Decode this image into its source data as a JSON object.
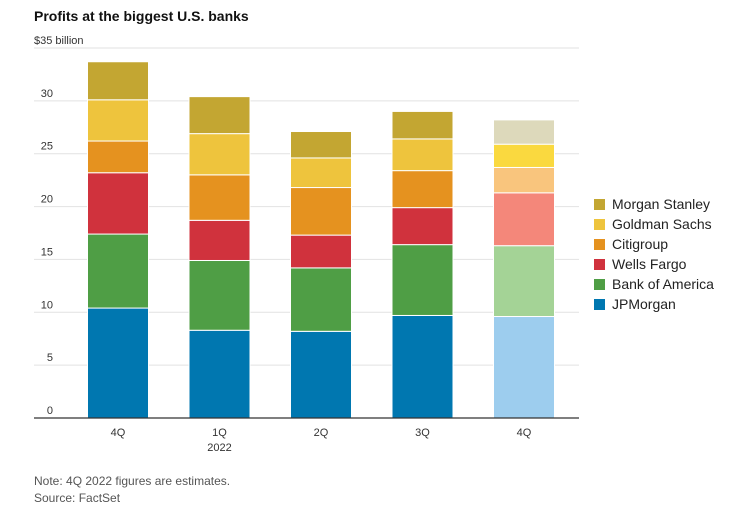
{
  "chart_data": {
    "type": "bar",
    "stacked": true,
    "title": "Profits at the biggest U.S. banks",
    "y_unit_label": "$35 billion",
    "ylim": [
      0,
      35
    ],
    "yticks": [
      "0",
      "5",
      "10",
      "15",
      "20",
      "25",
      "30"
    ],
    "categories": [
      "4Q",
      "1Q",
      "2Q",
      "3Q",
      "4Q"
    ],
    "category_sublabels": [
      "",
      "2022",
      "",
      "",
      ""
    ],
    "series": [
      {
        "name": "JPMorgan",
        "color": "#0077b0",
        "values": [
          10.4,
          8.3,
          8.2,
          9.7,
          9.6
        ]
      },
      {
        "name": "Bank of America",
        "color": "#4f9e45",
        "values": [
          7.0,
          6.6,
          6.0,
          6.7,
          6.7
        ]
      },
      {
        "name": "Wells Fargo",
        "color": "#d0323d",
        "values": [
          5.8,
          3.8,
          3.1,
          3.5,
          5.0
        ]
      },
      {
        "name": "Citigroup",
        "color": "#e5921f",
        "values": [
          3.0,
          4.3,
          4.5,
          3.5,
          2.4
        ]
      },
      {
        "name": "Goldman Sachs",
        "color": "#eec43d",
        "values": [
          3.9,
          3.9,
          2.8,
          3.0,
          2.2
        ]
      },
      {
        "name": "Morgan Stanley",
        "color": "#c3a632",
        "values": [
          3.6,
          3.5,
          2.5,
          2.6,
          2.3
        ]
      }
    ],
    "estimate_colors": [
      "#9dcdee",
      "#a4d396",
      "#f4877a",
      "#f9c57d",
      "#fad93f",
      "#ddd9bb"
    ],
    "estimate_index": 4,
    "legend_position": "right",
    "grid": true
  },
  "note": "Note: 4Q 2022 figures are estimates.",
  "source": "Source: FactSet"
}
